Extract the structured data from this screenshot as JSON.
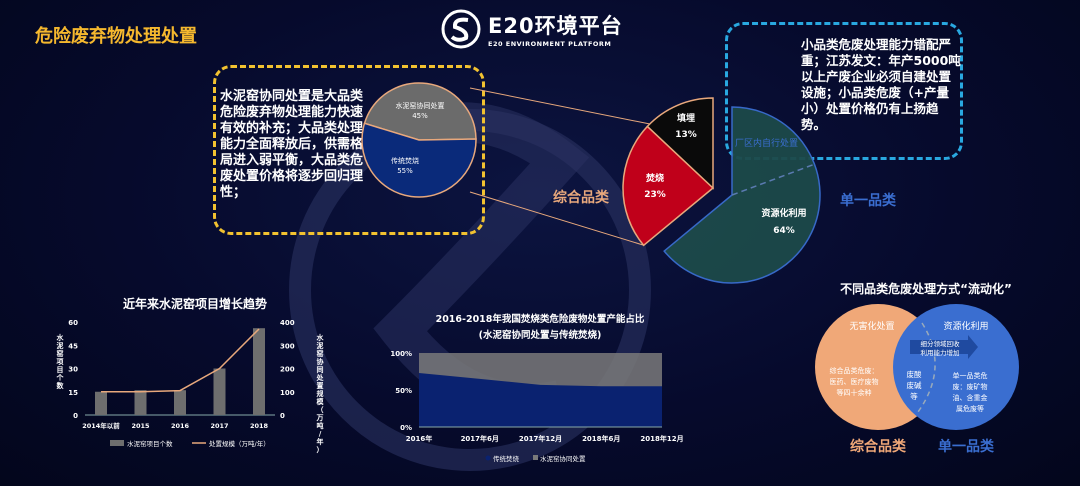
{
  "header": {
    "title": "危险废弃物处理处置",
    "logo_text": "E20环境平台",
    "logo_sub": "E20 ENVIRONMENT PLATFORM"
  },
  "left_note": "水泥窑协同处置是大品类危险废弃物处理能力快速有效的补充；大品类处理能力全面释放后，供需格局进入弱平衡，大品类危废处置价格将逐步回归理性；",
  "right_note": "小品类危废处理能力错配严重；江苏发文：年产5000吨以上产废企业必须自建处置设施；小品类危废（+产量小）处置价格仍有上扬趋势。",
  "small_pie": {
    "slices": [
      {
        "label": "水泥窑协同处置",
        "value": 45,
        "pct": "45%",
        "color": "#6b6b6b"
      },
      {
        "label": "传统焚烧",
        "value": 55,
        "pct": "55%",
        "color": "#0a2a7a"
      }
    ]
  },
  "main_pie": {
    "slices": [
      {
        "label": "资源化利用",
        "value": 64,
        "pct": "64%",
        "color": "#1d4a4a"
      },
      {
        "label": "焚烧",
        "value": 23,
        "pct": "23%",
        "color": "#c0001a"
      },
      {
        "label": "填埋",
        "value": 13,
        "pct": "13%",
        "color": "#0a0a0a"
      }
    ],
    "sub_label": "厂区内自行处置",
    "group_left": "综合品类",
    "group_right": "单一品类"
  },
  "chart_data": [
    {
      "type": "bar",
      "title": "近年来水泥窑项目增长趋势",
      "categories": [
        "2014年以前",
        "2015",
        "2016",
        "2017",
        "2018"
      ],
      "series": [
        {
          "name": "水泥窑项目个数",
          "type": "bar",
          "axis": "left",
          "values": [
            15,
            16,
            16,
            30,
            56
          ],
          "color": "#6e6e6e"
        },
        {
          "name": "处置规模（万吨/年）",
          "type": "line",
          "axis": "right",
          "values": [
            100,
            100,
            105,
            200,
            370
          ],
          "color": "#e8a87c"
        }
      ],
      "ylabel": "水泥窑项目个数",
      "ylabel_right": "水泥窑协同处置规模（万吨/年）",
      "ylim": [
        0,
        60
      ],
      "ylim_right": [
        0,
        400
      ],
      "yticks": [
        "0",
        "15",
        "30",
        "45",
        "60"
      ],
      "yticks_right": [
        "0",
        "100",
        "200",
        "300",
        "400"
      ]
    },
    {
      "type": "area",
      "title": "2016-2018年我国焚烧类危险废物处置产能占比",
      "subtitle": "(水泥窑协同处置与传统焚烧)",
      "categories": [
        "2016年",
        "2017年6月",
        "2017年12月",
        "2018年6月",
        "2018年12月"
      ],
      "series": [
        {
          "name": "传统焚烧",
          "values": [
            73,
            65,
            57,
            55,
            55
          ],
          "color": "#0a2270"
        },
        {
          "name": "水泥窑协同处置",
          "values": [
            27,
            35,
            43,
            45,
            45
          ],
          "color": "#7a7a7a"
        }
      ],
      "ylim": [
        0,
        100
      ],
      "yticks": [
        "0%",
        "50%",
        "100%"
      ],
      "stacked": true
    }
  ],
  "venn": {
    "title": "不同品类危废处理方式“流动化”",
    "left": {
      "title": "无害化处置",
      "text": "综合品类危废：医药、医疗废物等四十余种",
      "color": "#f0a878",
      "category": "综合品类"
    },
    "right": {
      "title": "资源化利用",
      "text": "单一品类危废：废矿物油、含重金属危废等",
      "color": "#3a6ed0",
      "category": "单一品类"
    },
    "overlap": "废酸废碱等",
    "arrow": "细分领域回收利用能力增加"
  }
}
